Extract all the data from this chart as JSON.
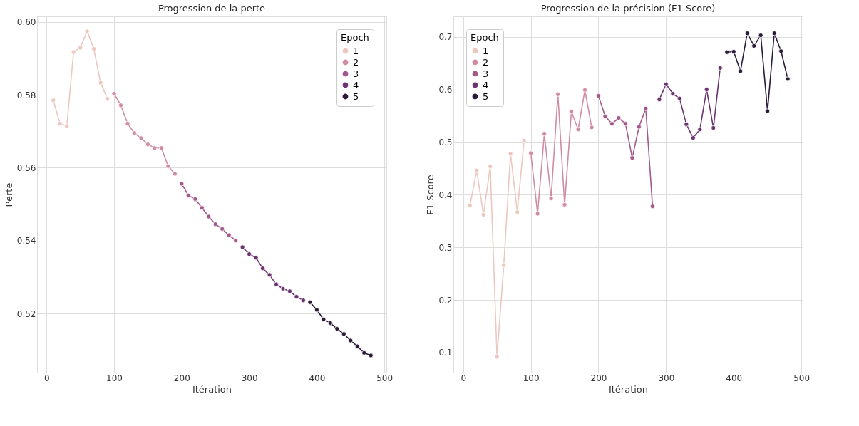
{
  "chart_data": [
    {
      "type": "line",
      "title": "Progression de la perte",
      "xlabel": "Itération",
      "ylabel": "Perte",
      "legend_title": "Epoch",
      "legend": "top right",
      "grid": true,
      "marker": "circle",
      "line_style": "solid",
      "xlim": [
        -14,
        503
      ],
      "xticks": [
        0,
        100,
        200,
        300,
        400,
        500
      ],
      "ylim": [
        0.5038,
        0.6015
      ],
      "yticks": [
        0.52,
        0.54,
        0.56,
        0.58,
        {
          "value": 0.6,
          "label": "0.60"
        }
      ],
      "series": [
        {
          "name": "1",
          "color": "#ebc7c0",
          "x": [
            10,
            20,
            30,
            40,
            50,
            60,
            70,
            80,
            90
          ],
          "values": [
            0.5785,
            0.5721,
            0.5714,
            0.5917,
            0.5929,
            0.5974,
            0.5926,
            0.5833,
            0.5789
          ]
        },
        {
          "name": "2",
          "color": "#d08ca0",
          "x": [
            100,
            110,
            120,
            130,
            140,
            150,
            160,
            170,
            180,
            190
          ],
          "values": [
            0.5803,
            0.5771,
            0.5721,
            0.5695,
            0.5681,
            0.5664,
            0.5654,
            0.5654,
            0.5604,
            0.5583
          ]
        },
        {
          "name": "3",
          "color": "#a3598a",
          "x": [
            200,
            210,
            220,
            230,
            240,
            250,
            260,
            270,
            280
          ],
          "values": [
            0.5556,
            0.5524,
            0.5514,
            0.549,
            0.5466,
            0.5445,
            0.5432,
            0.5415,
            0.54
          ]
        },
        {
          "name": "4",
          "color": "#6b3470",
          "x": [
            290,
            300,
            310,
            320,
            330,
            340,
            350,
            360,
            370,
            380
          ],
          "values": [
            0.5382,
            0.5363,
            0.5353,
            0.5324,
            0.5306,
            0.528,
            0.5268,
            0.5261,
            0.5246,
            0.5236
          ]
        },
        {
          "name": "5",
          "color": "#2d1a3a",
          "x": [
            390,
            400,
            410,
            420,
            430,
            440,
            450,
            460,
            470,
            480
          ],
          "values": [
            0.5231,
            0.521,
            0.5184,
            0.5174,
            0.5158,
            0.5144,
            0.5126,
            0.511,
            0.5092,
            0.5085
          ]
        }
      ]
    },
    {
      "type": "line",
      "title": "Progression de la précision (F1 Score)",
      "xlabel": "Itération",
      "ylabel": "F1 Score",
      "legend_title": "Epoch",
      "legend": "top left",
      "grid": true,
      "marker": "circle",
      "line_style": "solid",
      "xlim": [
        -14.5,
        502
      ],
      "xticks": [
        0,
        100,
        200,
        300,
        400,
        500
      ],
      "ylim": [
        0.062,
        0.739
      ],
      "yticks": [
        0.1,
        0.2,
        0.3,
        0.4,
        0.5,
        0.6,
        0.7
      ],
      "series": [
        {
          "name": "1",
          "color": "#ebc7c0",
          "x": [
            10,
            20,
            30,
            40,
            50,
            60,
            70,
            80,
            90
          ],
          "values": [
            0.38,
            0.446,
            0.362,
            0.454,
            0.092,
            0.266,
            0.478,
            0.367,
            0.503
          ]
        },
        {
          "name": "2",
          "color": "#d08ca0",
          "x": [
            100,
            110,
            120,
            130,
            140,
            150,
            160,
            170,
            180,
            190
          ],
          "values": [
            0.479,
            0.364,
            0.516,
            0.393,
            0.591,
            0.381,
            0.558,
            0.524,
            0.599,
            0.528
          ]
        },
        {
          "name": "3",
          "color": "#a3598a",
          "x": [
            200,
            210,
            220,
            230,
            240,
            250,
            260,
            270,
            280
          ],
          "values": [
            0.588,
            0.549,
            0.535,
            0.546,
            0.535,
            0.47,
            0.529,
            0.564,
            0.378
          ]
        },
        {
          "name": "4",
          "color": "#6b3470",
          "x": [
            290,
            300,
            310,
            320,
            330,
            340,
            350,
            360,
            370,
            380
          ],
          "values": [
            0.581,
            0.61,
            0.592,
            0.583,
            0.534,
            0.508,
            0.524,
            0.6,
            0.527,
            0.641
          ]
        },
        {
          "name": "5",
          "color": "#2d1a3a",
          "x": [
            390,
            400,
            410,
            420,
            430,
            440,
            450,
            460,
            470,
            480
          ],
          "values": [
            0.671,
            0.672,
            0.635,
            0.707,
            0.683,
            0.703,
            0.559,
            0.707,
            0.673,
            0.62
          ]
        }
      ]
    }
  ]
}
